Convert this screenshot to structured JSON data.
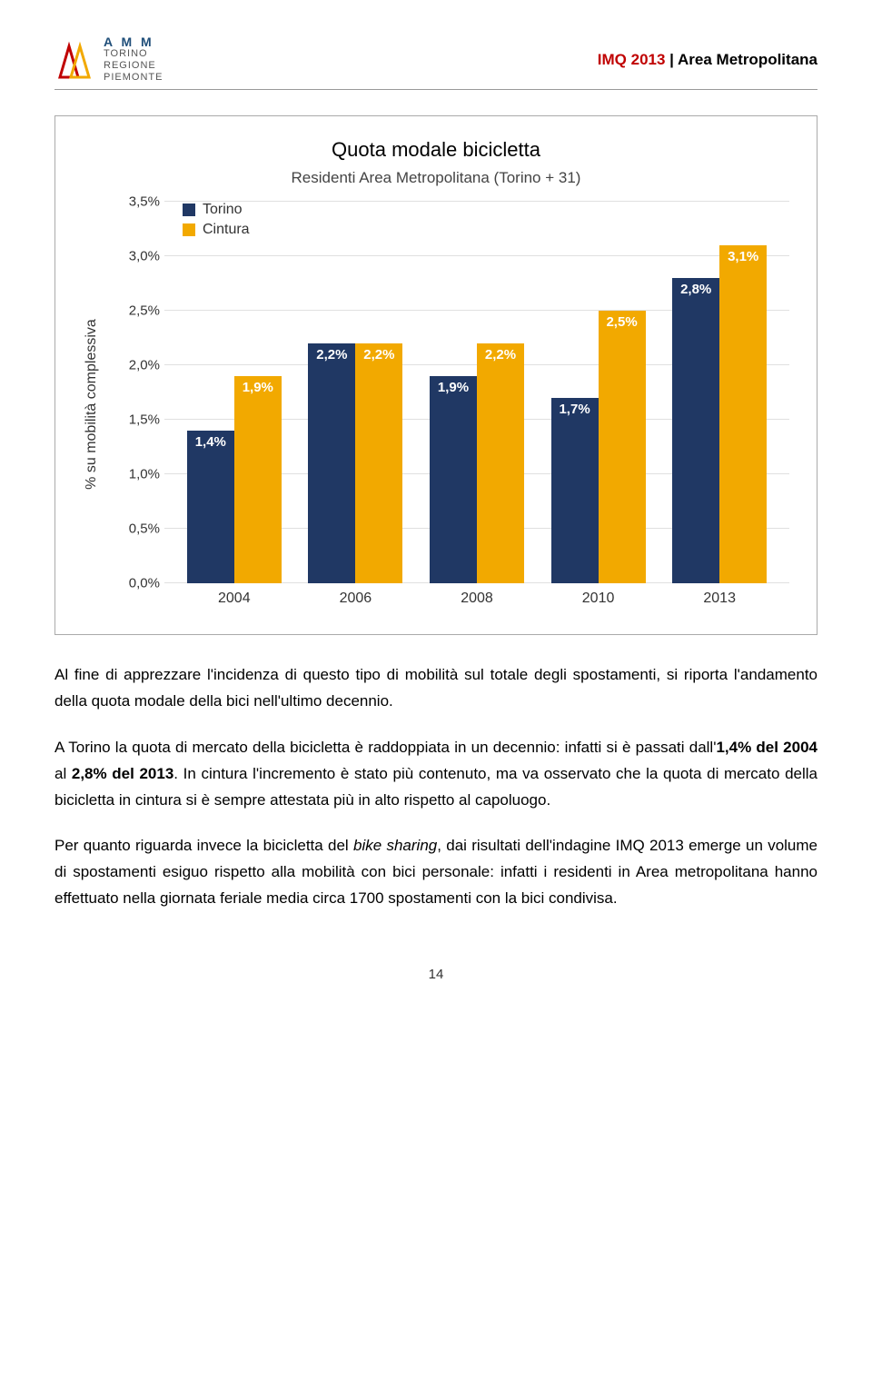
{
  "header": {
    "logo_text_lines": [
      "TORINO",
      "REGIONE",
      "PIEMONTE"
    ],
    "logo_brand": "A M M",
    "title_red": "IMQ 2013",
    "title_sep": " | ",
    "title_rest": "Area Metropolitana"
  },
  "chart": {
    "title": "Quota modale bicicletta",
    "subtitle": "Residenti Area Metropolitana (Torino + 31)",
    "y_label": "% su mobilità complessiva",
    "y_max": 3.5,
    "y_ticks": [
      "3,5%",
      "3,0%",
      "2,5%",
      "2,0%",
      "1,5%",
      "1,0%",
      "0,5%",
      "0,0%"
    ],
    "y_tick_values": [
      3.5,
      3.0,
      2.5,
      2.0,
      1.5,
      1.0,
      0.5,
      0.0
    ],
    "colors": {
      "torino": "#203864",
      "cintura": "#f2a900",
      "grid": "#e0e0e0",
      "label_text": "#ffffff"
    },
    "legend": [
      {
        "color": "#203864",
        "label": "Torino"
      },
      {
        "color": "#f2a900",
        "label": "Cintura"
      }
    ],
    "categories": [
      "2004",
      "2006",
      "2008",
      "2010",
      "2013"
    ],
    "data": [
      {
        "torino": {
          "value": 1.4,
          "label": "1,4%"
        },
        "cintura": {
          "value": 1.9,
          "label": "1,9%"
        }
      },
      {
        "torino": {
          "value": 2.2,
          "label": "2,2%"
        },
        "cintura": {
          "value": 2.2,
          "label": "2,2%"
        }
      },
      {
        "torino": {
          "value": 1.9,
          "label": "1,9%"
        },
        "cintura": {
          "value": 2.2,
          "label": "2,2%"
        }
      },
      {
        "torino": {
          "value": 1.7,
          "label": "1,7%"
        },
        "cintura": {
          "value": 2.5,
          "label": "2,5%"
        }
      },
      {
        "torino": {
          "value": 2.8,
          "label": "2,8%"
        },
        "cintura": {
          "value": 3.1,
          "label": "3,1%"
        }
      }
    ]
  },
  "paragraphs": {
    "p1": "Al fine di apprezzare l'incidenza di questo tipo di mobilità sul totale degli spostamenti, si riporta l'andamento della quota modale della bici nell'ultimo decennio.",
    "p2_a": "A Torino la quota di mercato della bicicletta è raddoppiata in un decennio: infatti si è passati dall'",
    "p2_b": "1,4% del 2004",
    "p2_c": " al ",
    "p2_d": "2,8% del 2013",
    "p2_e": ". In cintura l'incremento è stato più contenuto, ma va osservato che la quota di mercato della bicicletta in cintura si è sempre attestata più in alto rispetto al capoluogo.",
    "p3_a": "Per quanto riguarda invece la bicicletta del ",
    "p3_b": "bike sharing",
    "p3_c": ", dai risultati dell'indagine IMQ 2013 emerge un volume di spostamenti esiguo rispetto alla mobilità con bici personale: infatti i residenti in Area metropolitana hanno effettuato nella giornata feriale media circa 1700 spostamenti con la bici condivisa."
  },
  "page_number": "14"
}
